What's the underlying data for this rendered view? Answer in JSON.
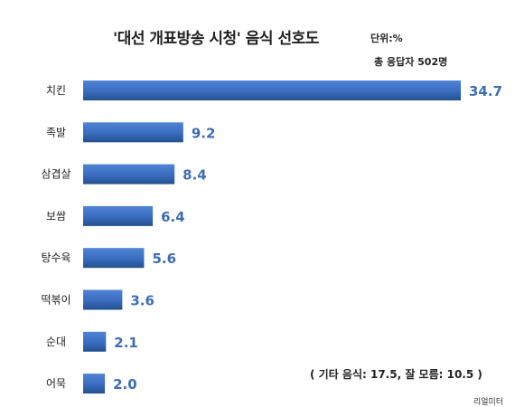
{
  "chart_data": {
    "type": "bar",
    "orientation": "horizontal",
    "title": "'대선 개표방송 시청' 음식 선호도",
    "unit": "단위:%",
    "respondents": "총 응답자 502명",
    "categories": [
      "치킨",
      "족발",
      "삼겹살",
      "보쌈",
      "탕수육",
      "떡볶이",
      "순대",
      "어묵"
    ],
    "values": [
      34.7,
      9.2,
      8.4,
      6.4,
      5.6,
      3.6,
      2.1,
      2.0
    ],
    "value_labels": [
      "34.7",
      "9.2",
      "8.4",
      "6.4",
      "5.6",
      "3.6",
      "2.1",
      "2.0"
    ],
    "footnote": "( 기타 음식: 17.5, 잘 모름: 10.5 )",
    "bar_color": "#3a6cbf",
    "bar_color_dark": "#22508f",
    "label_color": "#3d6db5",
    "grid": false,
    "legend": "none"
  },
  "source": "리얼미터"
}
